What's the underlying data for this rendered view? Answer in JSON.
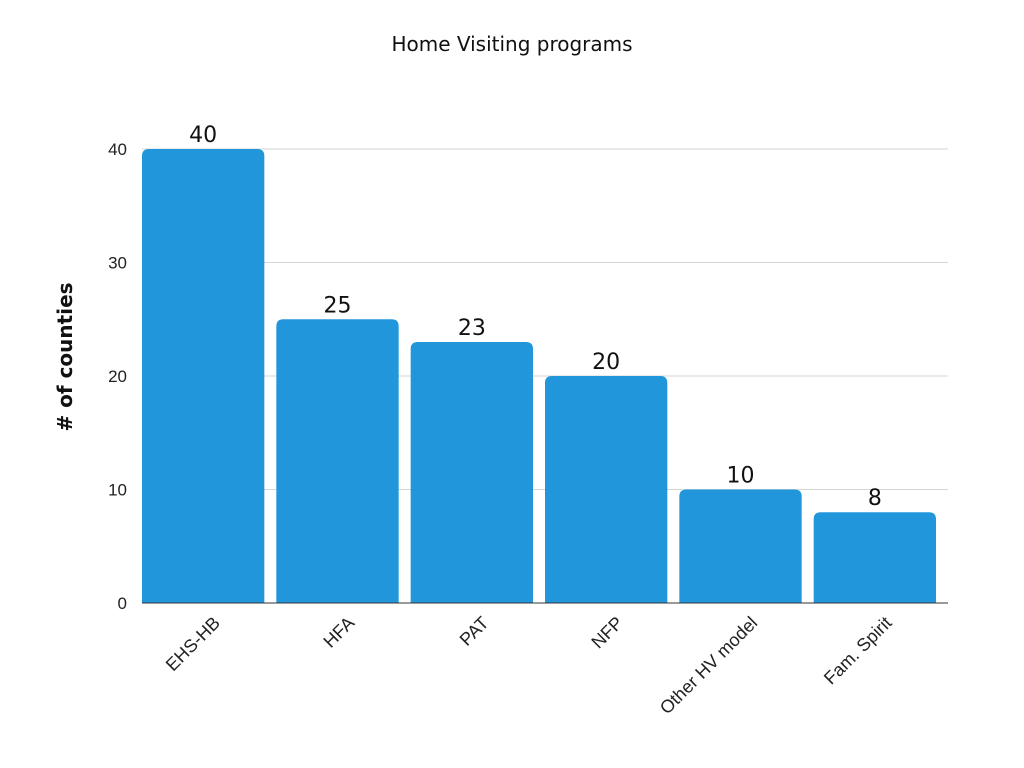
{
  "chart_data": {
    "type": "bar",
    "title": "Home Visiting programs",
    "xlabel": "",
    "ylabel": "# of counties",
    "categories": [
      "EHS-HB",
      "HFA",
      "PAT",
      "NFP",
      "Other HV model",
      "Fam. Spirit"
    ],
    "values": [
      40,
      25,
      23,
      20,
      10,
      8
    ],
    "ylim": [
      0,
      40
    ],
    "yticks": [
      0,
      10,
      20,
      30,
      40
    ],
    "grid": true,
    "data_labels": true,
    "bar_color": "#2196DB"
  }
}
